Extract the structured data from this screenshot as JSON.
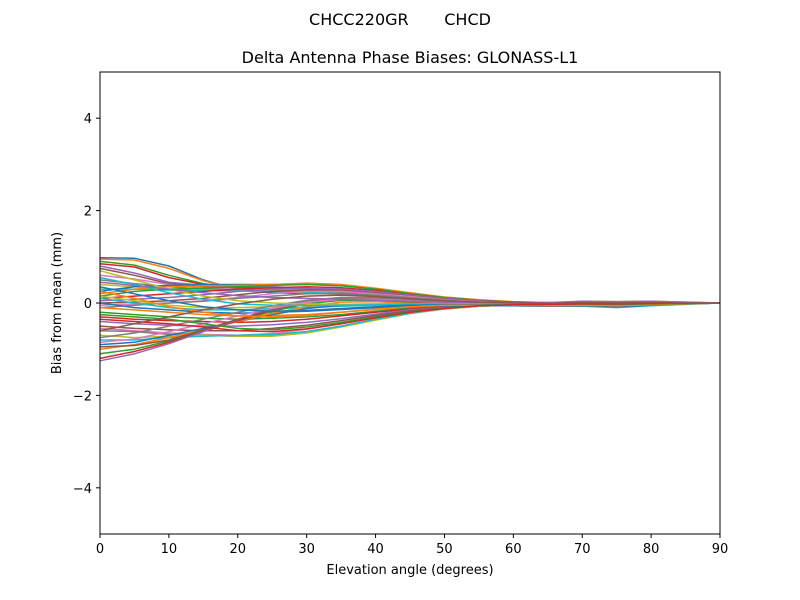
{
  "figure": {
    "suptitle": "CHCC220GR       CHCD"
  },
  "chart_data": {
    "type": "line",
    "title": "Delta Antenna Phase Biases: GLONASS-L1",
    "xlabel": "Elevation angle (degrees)",
    "ylabel": "Bias from mean (mm)",
    "xlim": [
      0,
      90
    ],
    "ylim": [
      -5,
      5
    ],
    "xticks": [
      0,
      10,
      20,
      30,
      40,
      50,
      60,
      70,
      80,
      90
    ],
    "yticks": [
      -4,
      -2,
      0,
      2,
      4
    ],
    "ytick_labels": [
      "−4",
      "−2",
      "0",
      "2",
      "4"
    ],
    "grid": false,
    "legend": "none",
    "x": [
      0,
      5,
      10,
      15,
      20,
      25,
      30,
      35,
      40,
      45,
      50,
      55,
      60,
      65,
      70,
      75,
      80,
      85,
      90
    ],
    "colors": [
      "#1f77b4",
      "#ff7f0e",
      "#2ca02c",
      "#d62728",
      "#9467bd",
      "#8c564b",
      "#e377c2",
      "#7f7f7f",
      "#bcbd22",
      "#17becf"
    ],
    "series": [
      {
        "values": [
          0.98,
          0.97,
          0.8,
          0.5,
          0.28,
          0.22,
          0.2,
          0.2,
          0.18,
          0.12,
          0.08,
          0.04,
          0.02,
          0.01,
          0.0,
          -0.01,
          -0.01,
          0.0,
          0.0
        ]
      },
      {
        "values": [
          0.95,
          0.93,
          0.75,
          0.48,
          0.3,
          0.25,
          0.22,
          0.2,
          0.18,
          0.13,
          0.08,
          0.05,
          0.02,
          0.0,
          0.01,
          0.0,
          0.01,
          0.0,
          0.0
        ]
      },
      {
        "values": [
          0.9,
          0.82,
          0.6,
          0.42,
          0.32,
          0.28,
          0.25,
          0.22,
          0.18,
          0.12,
          0.06,
          0.02,
          0.0,
          -0.02,
          0.0,
          -0.02,
          -0.01,
          0.0,
          0.0
        ]
      },
      {
        "values": [
          0.85,
          0.78,
          0.55,
          0.4,
          0.35,
          0.33,
          0.3,
          0.26,
          0.2,
          0.14,
          0.08,
          0.04,
          0.01,
          0.0,
          0.02,
          0.01,
          0.0,
          0.0,
          0.0
        ]
      },
      {
        "values": [
          0.8,
          0.65,
          0.45,
          0.38,
          0.36,
          0.35,
          0.32,
          0.27,
          0.2,
          0.13,
          0.07,
          0.03,
          0.0,
          -0.01,
          0.02,
          0.02,
          0.01,
          0.0,
          0.0
        ]
      },
      {
        "values": [
          0.75,
          0.6,
          0.42,
          0.35,
          0.33,
          0.32,
          0.3,
          0.25,
          0.18,
          0.11,
          0.05,
          0.02,
          -0.01,
          -0.03,
          -0.02,
          -0.03,
          -0.02,
          0.0,
          0.0
        ]
      },
      {
        "values": [
          0.6,
          0.52,
          0.4,
          0.33,
          0.3,
          0.3,
          0.28,
          0.24,
          0.18,
          0.12,
          0.06,
          0.03,
          0.01,
          0.0,
          0.03,
          0.02,
          0.03,
          0.01,
          0.0
        ]
      },
      {
        "values": [
          0.5,
          0.42,
          0.35,
          0.3,
          0.28,
          0.27,
          0.25,
          0.22,
          0.17,
          0.11,
          0.05,
          0.02,
          0.0,
          -0.01,
          0.01,
          0.0,
          0.0,
          0.0,
          0.0
        ]
      },
      {
        "values": [
          0.4,
          0.35,
          0.3,
          0.28,
          0.27,
          0.26,
          0.24,
          0.2,
          0.15,
          0.1,
          0.05,
          0.02,
          0.0,
          0.0,
          0.02,
          0.02,
          0.02,
          0.01,
          0.0
        ]
      },
      {
        "values": [
          0.3,
          0.3,
          0.28,
          0.27,
          0.26,
          0.25,
          0.23,
          0.2,
          0.15,
          0.1,
          0.05,
          0.02,
          0.0,
          -0.02,
          -0.01,
          -0.02,
          -0.01,
          0.0,
          0.0
        ]
      },
      {
        "values": [
          0.25,
          0.35,
          0.38,
          0.4,
          0.4,
          0.4,
          0.42,
          0.38,
          0.3,
          0.2,
          0.12,
          0.06,
          0.02,
          0.0,
          0.03,
          0.02,
          0.03,
          0.01,
          0.0
        ]
      },
      {
        "values": [
          0.2,
          0.3,
          0.35,
          0.37,
          0.38,
          0.4,
          0.43,
          0.4,
          0.32,
          0.22,
          0.13,
          0.07,
          0.03,
          0.01,
          0.04,
          0.03,
          0.04,
          0.02,
          0.0
        ]
      },
      {
        "values": [
          0.15,
          0.25,
          0.3,
          0.32,
          0.35,
          0.38,
          0.4,
          0.37,
          0.3,
          0.2,
          0.12,
          0.06,
          0.02,
          0.0,
          0.02,
          0.01,
          0.02,
          0.01,
          0.0
        ]
      },
      {
        "values": [
          0.1,
          0.15,
          0.2,
          0.25,
          0.3,
          0.33,
          0.35,
          0.33,
          0.27,
          0.18,
          0.1,
          0.05,
          0.02,
          0.0,
          0.02,
          0.01,
          0.01,
          0.0,
          0.0
        ]
      },
      {
        "values": [
          0.05,
          0.08,
          0.12,
          0.18,
          0.25,
          0.3,
          0.32,
          0.3,
          0.25,
          0.17,
          0.1,
          0.05,
          0.01,
          -0.01,
          0.01,
          0.0,
          0.01,
          0.0,
          0.0
        ]
      },
      {
        "values": [
          0.0,
          0.02,
          0.05,
          0.1,
          0.18,
          0.25,
          0.28,
          0.27,
          0.22,
          0.15,
          0.08,
          0.04,
          0.01,
          -0.01,
          0.0,
          -0.01,
          0.0,
          0.0,
          0.0
        ]
      },
      {
        "values": [
          -0.05,
          -0.02,
          0.0,
          0.05,
          0.12,
          0.2,
          0.25,
          0.25,
          0.2,
          0.14,
          0.07,
          0.03,
          0.0,
          -0.02,
          0.0,
          -0.02,
          -0.01,
          0.0,
          0.0
        ]
      },
      {
        "values": [
          -0.1,
          -0.05,
          0.0,
          0.04,
          0.1,
          0.15,
          0.2,
          0.2,
          0.17,
          0.12,
          0.06,
          0.02,
          0.0,
          -0.01,
          0.01,
          0.0,
          0.0,
          0.0,
          0.0
        ]
      },
      {
        "values": [
          0.15,
          0.05,
          -0.05,
          -0.1,
          -0.1,
          -0.08,
          -0.05,
          -0.03,
          -0.02,
          -0.02,
          -0.03,
          -0.04,
          -0.05,
          -0.06,
          -0.06,
          -0.08,
          -0.05,
          -0.02,
          0.0
        ]
      },
      {
        "values": [
          0.1,
          0.0,
          -0.1,
          -0.15,
          -0.15,
          -0.12,
          -0.1,
          -0.07,
          -0.05,
          -0.04,
          -0.04,
          -0.05,
          -0.06,
          -0.07,
          -0.07,
          -0.1,
          -0.06,
          -0.03,
          0.0
        ]
      },
      {
        "values": [
          0.0,
          -0.1,
          -0.15,
          -0.2,
          -0.22,
          -0.2,
          -0.18,
          -0.14,
          -0.1,
          -0.07,
          -0.05,
          -0.05,
          -0.06,
          -0.07,
          -0.06,
          -0.08,
          -0.05,
          -0.02,
          0.0
        ]
      },
      {
        "values": [
          -0.1,
          -0.15,
          -0.2,
          -0.25,
          -0.28,
          -0.27,
          -0.25,
          -0.2,
          -0.14,
          -0.09,
          -0.06,
          -0.05,
          -0.05,
          -0.06,
          -0.05,
          -0.06,
          -0.04,
          -0.02,
          0.0
        ]
      },
      {
        "values": [
          -0.2,
          -0.25,
          -0.3,
          -0.33,
          -0.35,
          -0.33,
          -0.3,
          -0.25,
          -0.18,
          -0.11,
          -0.07,
          -0.05,
          -0.05,
          -0.05,
          -0.04,
          -0.05,
          -0.03,
          -0.01,
          0.0
        ]
      },
      {
        "values": [
          -0.3,
          -0.35,
          -0.38,
          -0.4,
          -0.42,
          -0.4,
          -0.35,
          -0.28,
          -0.2,
          -0.13,
          -0.08,
          -0.05,
          -0.04,
          -0.04,
          -0.03,
          -0.04,
          -0.03,
          -0.01,
          0.0
        ]
      },
      {
        "values": [
          -0.4,
          -0.45,
          -0.48,
          -0.5,
          -0.5,
          -0.47,
          -0.42,
          -0.34,
          -0.24,
          -0.15,
          -0.09,
          -0.05,
          -0.04,
          -0.04,
          -0.03,
          -0.03,
          -0.02,
          -0.01,
          0.0
        ]
      },
      {
        "values": [
          -0.5,
          -0.55,
          -0.58,
          -0.6,
          -0.6,
          -0.55,
          -0.48,
          -0.38,
          -0.27,
          -0.17,
          -0.1,
          -0.06,
          -0.04,
          -0.03,
          -0.02,
          -0.03,
          -0.02,
          -0.01,
          0.0
        ]
      },
      {
        "values": [
          -0.55,
          -0.6,
          -0.65,
          -0.68,
          -0.7,
          -0.66,
          -0.57,
          -0.45,
          -0.32,
          -0.2,
          -0.12,
          -0.07,
          -0.04,
          -0.03,
          -0.02,
          -0.02,
          -0.01,
          0.0,
          0.0
        ]
      },
      {
        "values": [
          -0.6,
          -0.62,
          -0.68,
          -0.7,
          -0.72,
          -0.7,
          -0.62,
          -0.5,
          -0.35,
          -0.22,
          -0.13,
          -0.07,
          -0.04,
          -0.02,
          -0.01,
          -0.02,
          -0.01,
          0.0,
          0.0
        ]
      },
      {
        "values": [
          -0.7,
          -0.75,
          -0.72,
          -0.7,
          -0.72,
          -0.72,
          -0.65,
          -0.52,
          -0.37,
          -0.23,
          -0.13,
          -0.07,
          -0.04,
          -0.02,
          0.0,
          -0.01,
          0.0,
          0.0,
          0.0
        ]
      },
      {
        "values": [
          -0.8,
          -0.8,
          -0.75,
          -0.72,
          -0.7,
          -0.68,
          -0.62,
          -0.5,
          -0.35,
          -0.22,
          -0.12,
          -0.06,
          -0.03,
          -0.01,
          0.01,
          0.0,
          0.01,
          0.0,
          0.0
        ]
      },
      {
        "values": [
          -0.9,
          -0.85,
          -0.7,
          -0.55,
          -0.4,
          -0.25,
          -0.12,
          -0.05,
          -0.03,
          -0.05,
          -0.06,
          -0.06,
          -0.06,
          -0.05,
          -0.04,
          -0.05,
          -0.03,
          -0.01,
          0.0
        ]
      },
      {
        "values": [
          -1.0,
          -0.9,
          -0.75,
          -0.58,
          -0.4,
          -0.22,
          -0.08,
          0.02,
          0.03,
          -0.01,
          -0.04,
          -0.05,
          -0.05,
          -0.05,
          -0.03,
          -0.04,
          -0.02,
          -0.01,
          0.0
        ]
      },
      {
        "values": [
          -1.1,
          -1.0,
          -0.82,
          -0.6,
          -0.38,
          -0.18,
          -0.02,
          0.06,
          0.06,
          0.02,
          -0.02,
          -0.04,
          -0.05,
          -0.05,
          -0.03,
          -0.04,
          -0.02,
          -0.01,
          0.0
        ]
      },
      {
        "values": [
          -1.2,
          -1.05,
          -0.85,
          -0.62,
          -0.38,
          -0.15,
          0.02,
          0.1,
          0.08,
          0.03,
          -0.01,
          -0.03,
          -0.04,
          -0.04,
          -0.02,
          -0.03,
          -0.02,
          0.0,
          0.0
        ]
      },
      {
        "values": [
          -1.25,
          -1.1,
          -0.88,
          -0.62,
          -0.36,
          -0.12,
          0.05,
          0.12,
          0.1,
          0.05,
          0.0,
          -0.03,
          -0.04,
          -0.04,
          -0.02,
          -0.03,
          -0.01,
          0.0,
          0.0
        ]
      },
      {
        "values": [
          -0.95,
          -0.92,
          -0.8,
          -0.58,
          -0.35,
          -0.15,
          0.02,
          0.1,
          0.1,
          0.06,
          0.02,
          -0.01,
          -0.02,
          -0.03,
          -0.01,
          -0.02,
          -0.01,
          0.0,
          0.0
        ]
      },
      {
        "values": [
          -0.85,
          -0.78,
          -0.62,
          -0.45,
          -0.28,
          -0.12,
          0.02,
          0.08,
          0.08,
          0.05,
          0.02,
          0.0,
          -0.02,
          -0.02,
          0.0,
          -0.01,
          0.0,
          0.0,
          0.0
        ]
      },
      {
        "values": [
          -0.75,
          -0.65,
          -0.5,
          -0.35,
          -0.2,
          -0.06,
          0.06,
          0.12,
          0.12,
          0.08,
          0.04,
          0.01,
          -0.01,
          -0.02,
          0.0,
          -0.01,
          0.0,
          0.0,
          0.0
        ]
      },
      {
        "values": [
          0.7,
          0.5,
          0.3,
          0.15,
          0.05,
          0.0,
          -0.02,
          -0.03,
          -0.02,
          -0.01,
          -0.01,
          -0.02,
          -0.03,
          -0.04,
          -0.03,
          -0.05,
          -0.03,
          -0.01,
          0.0
        ]
      },
      {
        "values": [
          0.55,
          0.4,
          0.22,
          0.08,
          -0.02,
          -0.05,
          -0.06,
          -0.05,
          -0.04,
          -0.02,
          -0.02,
          -0.03,
          -0.04,
          -0.05,
          -0.04,
          -0.06,
          -0.04,
          -0.02,
          0.0
        ]
      },
      {
        "values": [
          0.35,
          0.2,
          0.05,
          -0.08,
          -0.15,
          -0.18,
          -0.16,
          -0.12,
          -0.08,
          -0.05,
          -0.04,
          -0.04,
          -0.05,
          -0.06,
          -0.05,
          -0.07,
          -0.04,
          -0.02,
          0.0
        ]
      },
      {
        "values": [
          0.25,
          0.1,
          -0.08,
          -0.2,
          -0.28,
          -0.3,
          -0.27,
          -0.2,
          -0.13,
          -0.08,
          -0.05,
          -0.05,
          -0.05,
          -0.06,
          -0.05,
          -0.06,
          -0.04,
          -0.02,
          0.0
        ]
      },
      {
        "values": [
          -0.25,
          -0.3,
          -0.35,
          -0.45,
          -0.55,
          -0.58,
          -0.52,
          -0.42,
          -0.3,
          -0.19,
          -0.11,
          -0.06,
          -0.04,
          -0.03,
          -0.02,
          -0.03,
          -0.02,
          -0.01,
          0.0
        ]
      },
      {
        "values": [
          -0.35,
          -0.4,
          -0.45,
          -0.52,
          -0.6,
          -0.62,
          -0.56,
          -0.45,
          -0.32,
          -0.2,
          -0.12,
          -0.06,
          -0.04,
          -0.03,
          -0.02,
          -0.02,
          -0.01,
          0.0,
          0.0
        ]
      },
      {
        "values": [
          0.45,
          0.38,
          0.3,
          0.22,
          0.16,
          0.12,
          0.1,
          0.08,
          0.06,
          0.04,
          0.02,
          0.01,
          0.0,
          0.0,
          0.04,
          0.03,
          0.04,
          0.02,
          0.0
        ]
      },
      {
        "values": [
          -0.6,
          -0.45,
          -0.3,
          -0.15,
          -0.02,
          0.08,
          0.15,
          0.17,
          0.14,
          0.09,
          0.05,
          0.02,
          0.0,
          -0.01,
          0.01,
          0.0,
          0.01,
          0.0,
          0.0
        ]
      }
    ]
  }
}
